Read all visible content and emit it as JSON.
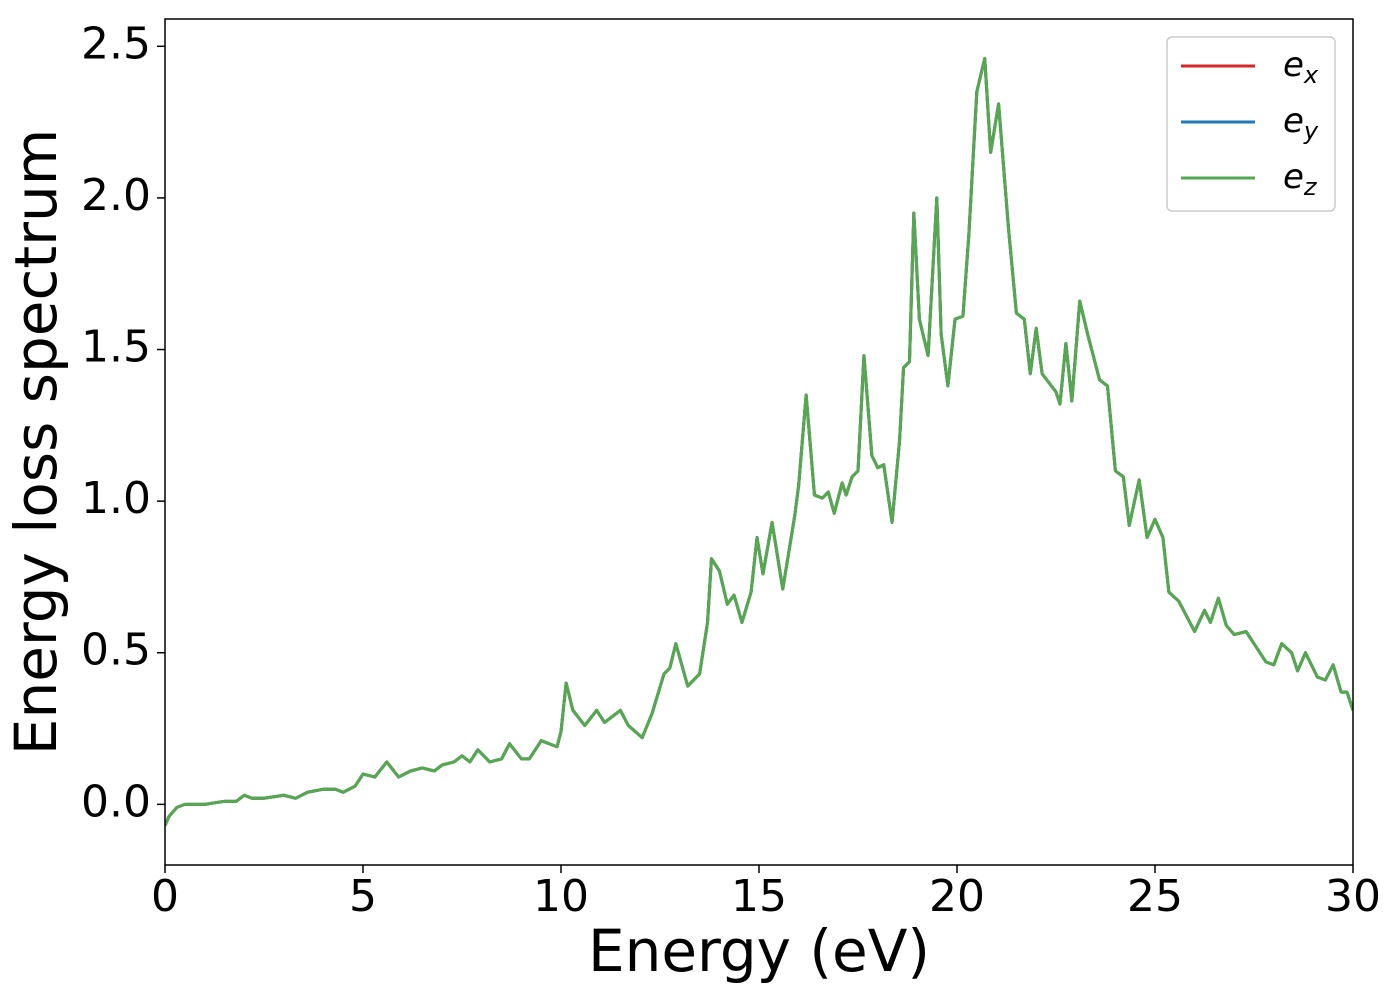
{
  "chart_data": {
    "type": "line",
    "xlabel": "Energy (eV)",
    "ylabel": "Energy loss spectrum",
    "x": [
      0,
      0.1,
      0.3,
      0.5,
      1.0,
      1.5,
      1.8,
      2.0,
      2.2,
      2.5,
      3.0,
      3.3,
      3.6,
      4.0,
      4.3,
      4.5,
      4.8,
      5.0,
      5.3,
      5.6,
      5.9,
      6.2,
      6.5,
      6.8,
      7.0,
      7.3,
      7.5,
      7.7,
      7.9,
      8.2,
      8.5,
      8.7,
      9.0,
      9.2,
      9.5,
      9.9,
      10.0,
      10.13,
      10.3,
      10.6,
      10.9,
      11.1,
      11.3,
      11.5,
      11.7,
      12.05,
      12.3,
      12.6,
      12.75,
      12.9,
      13.2,
      13.5,
      13.7,
      13.8,
      14.0,
      14.2,
      14.37,
      14.57,
      14.8,
      14.95,
      15.1,
      15.33,
      15.6,
      15.9,
      16.0,
      16.19,
      16.4,
      16.6,
      16.75,
      16.9,
      17.1,
      17.2,
      17.35,
      17.5,
      17.65,
      17.85,
      18.0,
      18.15,
      18.36,
      18.55,
      18.65,
      18.8,
      18.91,
      19.05,
      19.27,
      19.49,
      19.6,
      19.77,
      19.95,
      20.15,
      20.3,
      20.5,
      20.7,
      20.85,
      21.05,
      21.3,
      21.5,
      21.7,
      21.85,
      22.0,
      22.15,
      22.5,
      22.6,
      22.75,
      22.9,
      23.1,
      23.3,
      23.5,
      23.6,
      23.8,
      24.0,
      24.2,
      24.35,
      24.6,
      24.8,
      25.0,
      25.2,
      25.35,
      25.6,
      25.8,
      26.0,
      26.25,
      26.4,
      26.6,
      26.8,
      27.0,
      27.3,
      27.5,
      27.8,
      28.0,
      28.2,
      28.45,
      28.6,
      28.8,
      29.1,
      29.3,
      29.5,
      29.7,
      29.85,
      30.0
    ],
    "series": [
      {
        "name": "ex",
        "color": "#d62728",
        "values": [
          -0.07,
          -0.04,
          -0.01,
          0.0,
          0.0,
          0.01,
          0.01,
          0.03,
          0.02,
          0.02,
          0.03,
          0.02,
          0.04,
          0.05,
          0.05,
          0.04,
          0.06,
          0.1,
          0.09,
          0.14,
          0.09,
          0.11,
          0.12,
          0.11,
          0.13,
          0.14,
          0.16,
          0.14,
          0.18,
          0.14,
          0.15,
          0.2,
          0.15,
          0.15,
          0.21,
          0.19,
          0.24,
          0.4,
          0.31,
          0.26,
          0.31,
          0.27,
          0.29,
          0.31,
          0.26,
          0.22,
          0.3,
          0.43,
          0.45,
          0.53,
          0.39,
          0.43,
          0.6,
          0.81,
          0.77,
          0.66,
          0.69,
          0.6,
          0.7,
          0.88,
          0.76,
          0.93,
          0.71,
          0.95,
          1.05,
          1.35,
          1.02,
          1.01,
          1.03,
          0.96,
          1.06,
          1.02,
          1.08,
          1.1,
          1.48,
          1.15,
          1.11,
          1.12,
          0.93,
          1.2,
          1.44,
          1.46,
          1.95,
          1.6,
          1.48,
          2.0,
          1.55,
          1.38,
          1.6,
          1.61,
          1.88,
          2.35,
          2.46,
          2.15,
          2.31,
          1.9,
          1.62,
          1.6,
          1.42,
          1.57,
          1.42,
          1.36,
          1.32,
          1.52,
          1.33,
          1.66,
          1.55,
          1.45,
          1.4,
          1.38,
          1.1,
          1.08,
          0.92,
          1.07,
          0.88,
          0.94,
          0.88,
          0.7,
          0.67,
          0.62,
          0.57,
          0.64,
          0.6,
          0.68,
          0.59,
          0.56,
          0.57,
          0.53,
          0.47,
          0.46,
          0.53,
          0.5,
          0.44,
          0.5,
          0.42,
          0.41,
          0.46,
          0.37,
          0.37,
          0.31
        ]
      },
      {
        "name": "ey",
        "color": "#1f77b4",
        "values": [
          -0.07,
          -0.04,
          -0.01,
          0.0,
          0.0,
          0.01,
          0.01,
          0.03,
          0.02,
          0.02,
          0.03,
          0.02,
          0.04,
          0.05,
          0.05,
          0.04,
          0.06,
          0.1,
          0.09,
          0.14,
          0.09,
          0.11,
          0.12,
          0.11,
          0.13,
          0.14,
          0.16,
          0.14,
          0.18,
          0.14,
          0.15,
          0.2,
          0.15,
          0.15,
          0.21,
          0.19,
          0.24,
          0.4,
          0.31,
          0.26,
          0.31,
          0.27,
          0.29,
          0.31,
          0.26,
          0.22,
          0.3,
          0.43,
          0.45,
          0.53,
          0.39,
          0.43,
          0.6,
          0.81,
          0.77,
          0.66,
          0.69,
          0.6,
          0.7,
          0.88,
          0.76,
          0.93,
          0.71,
          0.95,
          1.05,
          1.35,
          1.02,
          1.01,
          1.03,
          0.96,
          1.06,
          1.02,
          1.08,
          1.1,
          1.48,
          1.15,
          1.11,
          1.12,
          0.93,
          1.2,
          1.44,
          1.46,
          1.95,
          1.6,
          1.48,
          2.0,
          1.55,
          1.38,
          1.6,
          1.61,
          1.88,
          2.35,
          2.46,
          2.15,
          2.31,
          1.9,
          1.62,
          1.6,
          1.42,
          1.57,
          1.42,
          1.36,
          1.32,
          1.52,
          1.33,
          1.66,
          1.55,
          1.45,
          1.4,
          1.38,
          1.1,
          1.08,
          0.92,
          1.07,
          0.88,
          0.94,
          0.88,
          0.7,
          0.67,
          0.62,
          0.57,
          0.64,
          0.6,
          0.68,
          0.59,
          0.56,
          0.57,
          0.53,
          0.47,
          0.46,
          0.53,
          0.5,
          0.44,
          0.5,
          0.42,
          0.41,
          0.46,
          0.37,
          0.37,
          0.31
        ]
      },
      {
        "name": "ez",
        "color": "#55a84f",
        "values": [
          -0.07,
          -0.04,
          -0.01,
          0.0,
          0.0,
          0.01,
          0.01,
          0.03,
          0.02,
          0.02,
          0.03,
          0.02,
          0.04,
          0.05,
          0.05,
          0.04,
          0.06,
          0.1,
          0.09,
          0.14,
          0.09,
          0.11,
          0.12,
          0.11,
          0.13,
          0.14,
          0.16,
          0.14,
          0.18,
          0.14,
          0.15,
          0.2,
          0.15,
          0.15,
          0.21,
          0.19,
          0.24,
          0.4,
          0.31,
          0.26,
          0.31,
          0.27,
          0.29,
          0.31,
          0.26,
          0.22,
          0.3,
          0.43,
          0.45,
          0.53,
          0.39,
          0.43,
          0.6,
          0.81,
          0.77,
          0.66,
          0.69,
          0.6,
          0.7,
          0.88,
          0.76,
          0.93,
          0.71,
          0.95,
          1.05,
          1.35,
          1.02,
          1.01,
          1.03,
          0.96,
          1.06,
          1.02,
          1.08,
          1.1,
          1.48,
          1.15,
          1.11,
          1.12,
          0.93,
          1.2,
          1.44,
          1.46,
          1.95,
          1.6,
          1.48,
          2.0,
          1.55,
          1.38,
          1.6,
          1.61,
          1.88,
          2.35,
          2.46,
          2.15,
          2.31,
          1.9,
          1.62,
          1.6,
          1.42,
          1.57,
          1.42,
          1.36,
          1.32,
          1.52,
          1.33,
          1.66,
          1.55,
          1.45,
          1.4,
          1.38,
          1.1,
          1.08,
          0.92,
          1.07,
          0.88,
          0.94,
          0.88,
          0.7,
          0.67,
          0.62,
          0.57,
          0.64,
          0.6,
          0.68,
          0.59,
          0.56,
          0.57,
          0.53,
          0.47,
          0.46,
          0.53,
          0.5,
          0.44,
          0.5,
          0.42,
          0.41,
          0.46,
          0.37,
          0.37,
          0.31
        ]
      }
    ],
    "xlim": [
      0,
      30
    ],
    "xticks": [
      0,
      5,
      10,
      15,
      20,
      25,
      30
    ],
    "ylim": [
      -0.2,
      2.59
    ],
    "yticks": [
      {
        "value": 0,
        "label": "0.0"
      },
      0.5,
      {
        "value": 1,
        "label": "1.0"
      },
      1.5,
      {
        "value": 2,
        "label": "2.0"
      },
      2.5
    ],
    "grid": false,
    "legend": "upper right"
  }
}
